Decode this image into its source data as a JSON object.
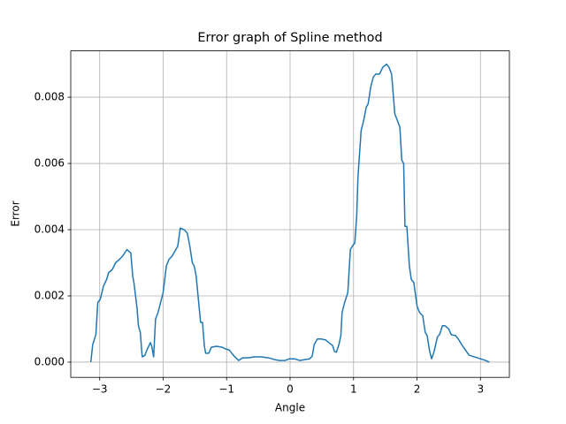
{
  "chart_data": {
    "type": "line",
    "title": "Error graph of Spline method",
    "x_label": "Angle",
    "y_label": "Error",
    "x": [
      -3.14,
      -3.11,
      -3.06,
      -3.03,
      -2.99,
      -2.94,
      -2.89,
      -2.86,
      -2.8,
      -2.75,
      -2.69,
      -2.64,
      -2.57,
      -2.51,
      -2.48,
      -2.46,
      -2.41,
      -2.39,
      -2.36,
      -2.33,
      -2.29,
      -2.26,
      -2.2,
      -2.18,
      -2.15,
      -2.12,
      -2.08,
      -2.04,
      -2.0,
      -1.95,
      -1.91,
      -1.86,
      -1.8,
      -1.77,
      -1.73,
      -1.67,
      -1.62,
      -1.58,
      -1.54,
      -1.51,
      -1.48,
      -1.44,
      -1.41,
      -1.38,
      -1.35,
      -1.33,
      -1.28,
      -1.24,
      -1.16,
      -1.07,
      -1.02,
      -0.96,
      -0.92,
      -0.87,
      -0.81,
      -0.75,
      -0.67,
      -0.56,
      -0.45,
      -0.34,
      -0.25,
      -0.17,
      -0.08,
      -0.01,
      0.07,
      0.15,
      0.24,
      0.31,
      0.35,
      0.38,
      0.43,
      0.49,
      0.56,
      0.63,
      0.67,
      0.7,
      0.73,
      0.77,
      0.8,
      0.82,
      0.86,
      0.91,
      0.95,
      0.98,
      1.02,
      1.05,
      1.07,
      1.12,
      1.16,
      1.2,
      1.23,
      1.27,
      1.31,
      1.35,
      1.41,
      1.46,
      1.52,
      1.56,
      1.6,
      1.65,
      1.69,
      1.73,
      1.76,
      1.79,
      1.81,
      1.84,
      1.88,
      1.91,
      1.95,
      2.0,
      2.04,
      2.09,
      2.13,
      2.16,
      2.2,
      2.23,
      2.27,
      2.32,
      2.36,
      2.4,
      2.44,
      2.5,
      2.54,
      2.61,
      2.66,
      2.72,
      2.78,
      2.82,
      2.9,
      3.0,
      3.08,
      3.14
    ],
    "series": [
      {
        "color": "#1f77b4",
        "values": [
          0,
          0.00053,
          0.00083,
          0.0018,
          0.0019,
          0.0023,
          0.0025,
          0.0027,
          0.0028,
          0.003,
          0.0031,
          0.0032,
          0.0034,
          0.0033,
          0.0026,
          0.0024,
          0.0016,
          0.0011,
          0.0009,
          0.00016,
          0.0002,
          0.00035,
          0.00059,
          0.00048,
          0.00016,
          0.0013,
          0.0015,
          0.0018,
          0.0021,
          0.0029,
          0.0031,
          0.0032,
          0.0034,
          0.0035,
          0.00405,
          0.004,
          0.0039,
          0.0035,
          0.003,
          0.0029,
          0.0026,
          0.0018,
          0.0012,
          0.0012,
          0.00048,
          0.00027,
          0.00027,
          0.00045,
          0.00048,
          0.00045,
          0.0004,
          0.00037,
          0.00027,
          0.00016,
          5e-05,
          0.00013,
          0.00013,
          0.00016,
          0.00016,
          0.00013,
          8e-05,
          5e-05,
          5e-05,
          0.0001,
          0.0001,
          5e-05,
          8e-05,
          0.0001,
          0.00019,
          0.00053,
          0.0007,
          0.0007,
          0.00067,
          0.00056,
          0.0005,
          0.00032,
          0.0003,
          0.00053,
          0.0008,
          0.0015,
          0.0018,
          0.0021,
          0.0034,
          0.0035,
          0.0036,
          0.0044,
          0.0056,
          0.007,
          0.0073,
          0.0077,
          0.0078,
          0.0083,
          0.0086,
          0.0087,
          0.0087,
          0.0089,
          0.009,
          0.0089,
          0.0087,
          0.0075,
          0.0073,
          0.0071,
          0.0061,
          0.006,
          0.0041,
          0.0041,
          0.0029,
          0.0025,
          0.0024,
          0.0017,
          0.0015,
          0.0014,
          0.0009,
          0.0008,
          0.00032,
          0.0001,
          0.00032,
          0.00075,
          0.00085,
          0.0011,
          0.0011,
          0.001,
          0.00083,
          0.0008,
          0.00067,
          0.00048,
          0.00032,
          0.00021,
          0.00016,
          0.0001,
          5e-05,
          0
        ]
      }
    ],
    "xlim": [
      -3.456,
      3.456
    ],
    "xticks": [
      {
        "value": -3,
        "label": "−3"
      },
      {
        "value": -2,
        "label": "−2"
      },
      {
        "value": -1,
        "label": "−1"
      },
      0,
      1,
      2,
      3
    ],
    "ylim": [
      -0.00046,
      0.0094
    ],
    "yticks": [
      {
        "value": 0,
        "label": "0.000"
      },
      0.002,
      0.004,
      0.006,
      0.008
    ],
    "grid": true
  }
}
